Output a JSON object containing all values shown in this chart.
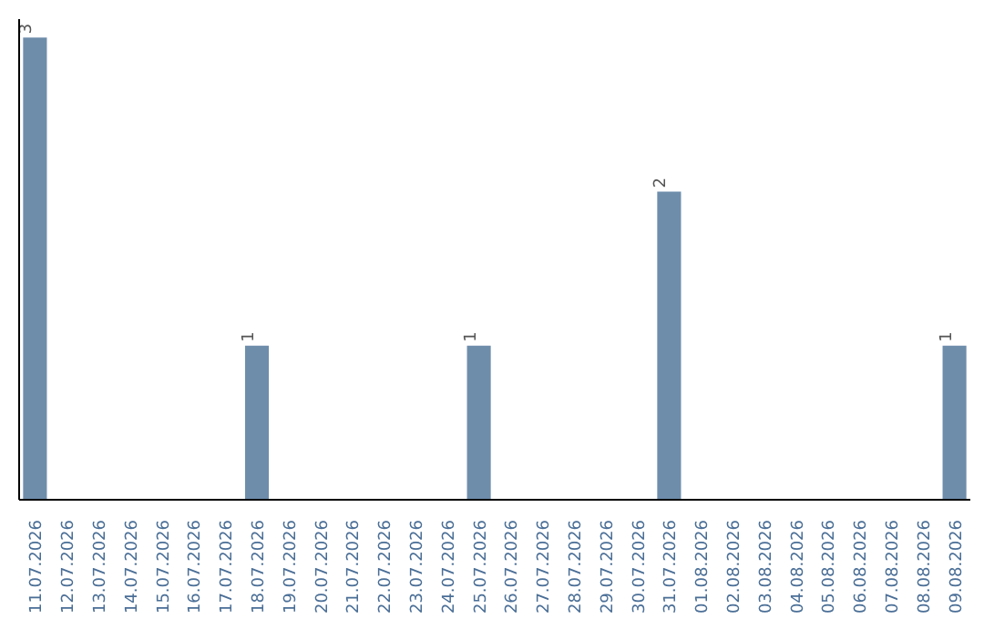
{
  "chart_data": {
    "type": "bar",
    "categories": [
      "11.07.2026",
      "12.07.2026",
      "13.07.2026",
      "14.07.2026",
      "15.07.2026",
      "16.07.2026",
      "17.07.2026",
      "18.07.2026",
      "19.07.2026",
      "20.07.2026",
      "21.07.2026",
      "22.07.2026",
      "23.07.2026",
      "24.07.2026",
      "25.07.2026",
      "26.07.2026",
      "27.07.2026",
      "28.07.2026",
      "29.07.2026",
      "30.07.2026",
      "31.07.2026",
      "01.08.2026",
      "02.08.2026",
      "03.08.2026",
      "04.08.2026",
      "05.08.2026",
      "06.08.2026",
      "07.08.2026",
      "08.08.2026",
      "09.08.2026"
    ],
    "values": [
      3,
      0,
      0,
      0,
      0,
      0,
      0,
      1,
      0,
      0,
      0,
      0,
      0,
      0,
      1,
      0,
      0,
      0,
      0,
      0,
      2,
      0,
      0,
      0,
      0,
      0,
      0,
      0,
      0,
      1
    ],
    "value_labels": [
      "3",
      null,
      null,
      null,
      null,
      null,
      null,
      "1",
      null,
      null,
      null,
      null,
      null,
      null,
      "1",
      null,
      null,
      null,
      null,
      null,
      "2",
      null,
      null,
      null,
      null,
      null,
      null,
      null,
      null,
      "1"
    ],
    "color": "#6e8dab",
    "tick_labels": "x",
    "grid": false
  }
}
